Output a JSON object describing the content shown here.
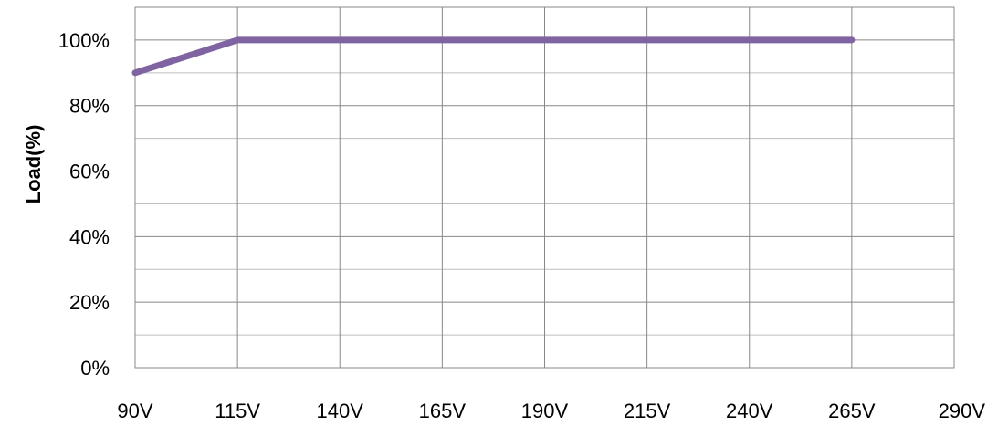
{
  "chart_data": {
    "type": "line",
    "xlabel": "",
    "ylabel": "Load(%)",
    "x_ticks": [
      "90V",
      "115V",
      "140V",
      "165V",
      "190V",
      "215V",
      "240V",
      "265V",
      "290V"
    ],
    "y_ticks": [
      "0%",
      "20%",
      "40%",
      "60%",
      "80%",
      "100%"
    ],
    "xlim": [
      90,
      290
    ],
    "ylim": [
      0,
      110
    ],
    "grid": true,
    "series": [
      {
        "color": "#8064A2",
        "x": [
          90,
          115,
          265
        ],
        "y": [
          90,
          100,
          100
        ]
      }
    ]
  }
}
